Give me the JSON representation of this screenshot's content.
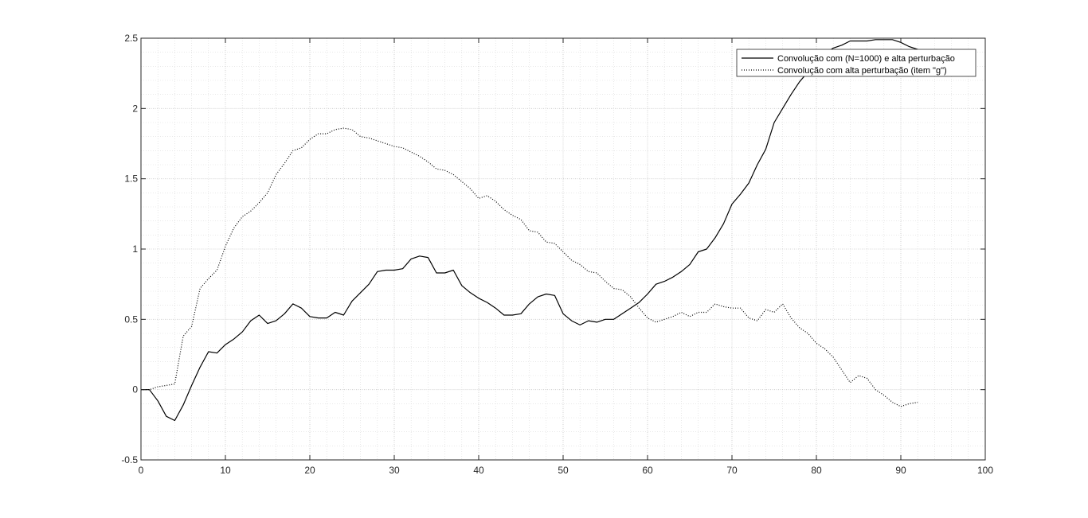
{
  "chart_data": {
    "type": "line",
    "title": "",
    "xlabel": "",
    "ylabel": "",
    "xlim": [
      0,
      100
    ],
    "ylim": [
      -0.5,
      2.5
    ],
    "xticks": [
      0,
      10,
      20,
      30,
      40,
      50,
      60,
      70,
      80,
      90,
      100
    ],
    "yticks": [
      -0.5,
      0,
      0.5,
      1,
      1.5,
      2,
      2.5
    ],
    "xtick_labels": [
      "0",
      "10",
      "20",
      "30",
      "40",
      "50",
      "60",
      "70",
      "80",
      "90",
      "100"
    ],
    "ytick_labels": [
      "-0.5",
      "0",
      "0.5",
      "1",
      "1.5",
      "2",
      "2.5"
    ],
    "grid": true,
    "minor_grid": true,
    "legend_position": "top-right",
    "series": [
      {
        "name": "Convolução com (N=1000) e alta perturbação",
        "style": "solid",
        "color": "#000000",
        "x": [
          0,
          1,
          2,
          3,
          4,
          5,
          6,
          7,
          8,
          9,
          10,
          11,
          12,
          13,
          14,
          15,
          16,
          17,
          18,
          19,
          20,
          21,
          22,
          23,
          24,
          25,
          26,
          27,
          28,
          29,
          30,
          31,
          32,
          33,
          34,
          35,
          36,
          37,
          38,
          39,
          40,
          41,
          42,
          43,
          44,
          45,
          46,
          47,
          48,
          49,
          50,
          51,
          52,
          53,
          54,
          55,
          56,
          57,
          58,
          59,
          60,
          61,
          62,
          63,
          64,
          65,
          66,
          67,
          68,
          69,
          70,
          71,
          72,
          73,
          74,
          75,
          76,
          77,
          78,
          79,
          80,
          81,
          82,
          83,
          84,
          85,
          86,
          87,
          88,
          89,
          90,
          91,
          92
        ],
        "y": [
          0,
          0,
          -0.08,
          -0.19,
          -0.22,
          -0.11,
          0.03,
          0.16,
          0.27,
          0.26,
          0.32,
          0.36,
          0.41,
          0.49,
          0.53,
          0.47,
          0.49,
          0.54,
          0.61,
          0.58,
          0.52,
          0.51,
          0.51,
          0.55,
          0.53,
          0.63,
          0.69,
          0.75,
          0.84,
          0.85,
          0.85,
          0.86,
          0.93,
          0.95,
          0.94,
          0.83,
          0.83,
          0.85,
          0.74,
          0.69,
          0.65,
          0.62,
          0.58,
          0.53,
          0.53,
          0.54,
          0.61,
          0.66,
          0.68,
          0.67,
          0.54,
          0.49,
          0.46,
          0.49,
          0.48,
          0.5,
          0.5,
          0.54,
          0.58,
          0.62,
          0.68,
          0.75,
          0.77,
          0.8,
          0.84,
          0.89,
          0.98,
          1.0,
          1.08,
          1.18,
          1.32,
          1.39,
          1.47,
          1.6,
          1.71,
          1.9,
          2.0,
          2.1,
          2.19,
          2.26,
          2.33,
          2.39,
          2.43,
          2.45,
          2.48,
          2.48,
          2.48,
          2.49,
          2.49,
          2.49,
          2.47,
          2.44,
          2.42
        ]
      },
      {
        "name": "Convolução com alta perturbação (item \"g\")",
        "style": "dotted",
        "color": "#000000",
        "x": [
          0,
          1,
          2,
          3,
          4,
          5,
          6,
          7,
          8,
          9,
          10,
          11,
          12,
          13,
          14,
          15,
          16,
          17,
          18,
          19,
          20,
          21,
          22,
          23,
          24,
          25,
          26,
          27,
          28,
          29,
          30,
          31,
          32,
          33,
          34,
          35,
          36,
          37,
          38,
          39,
          40,
          41,
          42,
          43,
          44,
          45,
          46,
          47,
          48,
          49,
          50,
          51,
          52,
          53,
          54,
          55,
          56,
          57,
          58,
          59,
          60,
          61,
          62,
          63,
          64,
          65,
          66,
          67,
          68,
          69,
          70,
          71,
          72,
          73,
          74,
          75,
          76,
          77,
          78,
          79,
          80,
          81,
          82,
          83,
          84,
          85,
          86,
          87,
          88,
          89,
          90,
          91,
          92
        ],
        "y": [
          0,
          0,
          0.02,
          0.03,
          0.04,
          0.38,
          0.45,
          0.72,
          0.79,
          0.85,
          1.02,
          1.15,
          1.23,
          1.27,
          1.33,
          1.4,
          1.53,
          1.61,
          1.7,
          1.72,
          1.78,
          1.82,
          1.82,
          1.85,
          1.86,
          1.85,
          1.8,
          1.79,
          1.77,
          1.75,
          1.73,
          1.72,
          1.69,
          1.66,
          1.62,
          1.57,
          1.56,
          1.53,
          1.48,
          1.43,
          1.36,
          1.38,
          1.34,
          1.28,
          1.24,
          1.21,
          1.13,
          1.12,
          1.05,
          1.04,
          0.98,
          0.92,
          0.89,
          0.84,
          0.83,
          0.77,
          0.72,
          0.71,
          0.66,
          0.58,
          0.51,
          0.48,
          0.5,
          0.52,
          0.55,
          0.52,
          0.55,
          0.55,
          0.61,
          0.59,
          0.58,
          0.58,
          0.51,
          0.49,
          0.57,
          0.55,
          0.61,
          0.51,
          0.44,
          0.4,
          0.33,
          0.29,
          0.23,
          0.14,
          0.05,
          0.1,
          0.08,
          0.0,
          -0.04,
          -0.09,
          -0.12,
          -0.1,
          -0.09
        ]
      }
    ]
  }
}
